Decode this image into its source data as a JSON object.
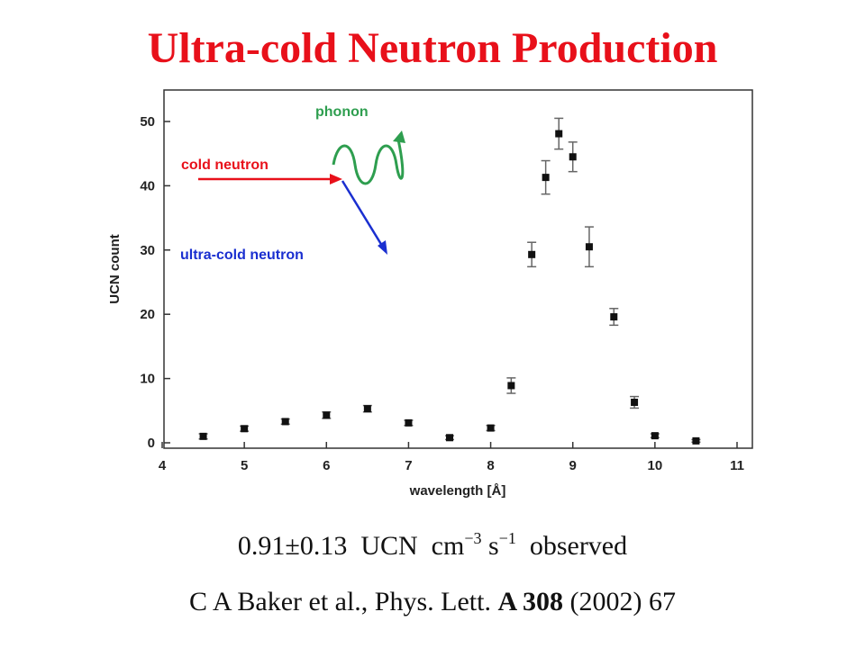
{
  "title": "Ultra-cold Neutron Production",
  "annotations": {
    "phonon": "phonon",
    "cold_neutron": "cold neutron",
    "ultra_cold_neutron": "ultra-cold neutron",
    "colors": {
      "phonon": "#2e9e4f",
      "cold_neutron": "#e8101a",
      "ultra_cold_neutron": "#1a2fd0"
    }
  },
  "rate": {
    "value": "0.91±0.13",
    "unit_ucn": "UCN",
    "unit_cm": "cm",
    "cm_exp": "−3",
    "unit_s": "s",
    "s_exp": "−1",
    "suffix": "observed"
  },
  "citation": {
    "authors": "C A Baker et al., Phys. Lett.",
    "volume": "A 308",
    "rest": "(2002) 67"
  },
  "chart_data": {
    "type": "scatter",
    "xlabel": "wavelength [Å]",
    "ylabel": "UCN count",
    "xlim": [
      4,
      11
    ],
    "ylim": [
      0,
      55
    ],
    "x_ticks": [
      4,
      5,
      6,
      7,
      8,
      9,
      10,
      11
    ],
    "y_ticks": [
      0,
      10,
      20,
      30,
      40,
      50
    ],
    "grid": false,
    "points": [
      {
        "x": 4.5,
        "y": 1.0,
        "err": 0.4
      },
      {
        "x": 5.0,
        "y": 2.2,
        "err": 0.4
      },
      {
        "x": 5.5,
        "y": 3.3,
        "err": 0.4
      },
      {
        "x": 6.0,
        "y": 4.3,
        "err": 0.5
      },
      {
        "x": 6.5,
        "y": 5.3,
        "err": 0.5
      },
      {
        "x": 7.0,
        "y": 3.1,
        "err": 0.4
      },
      {
        "x": 7.5,
        "y": 0.8,
        "err": 0.3
      },
      {
        "x": 8.0,
        "y": 2.3,
        "err": 0.4
      },
      {
        "x": 8.25,
        "y": 8.9,
        "err": 1.2
      },
      {
        "x": 8.5,
        "y": 29.3,
        "err": 1.9
      },
      {
        "x": 8.67,
        "y": 41.3,
        "err": 2.6
      },
      {
        "x": 8.83,
        "y": 48.1,
        "err": 2.4
      },
      {
        "x": 9.0,
        "y": 44.5,
        "err": 2.3
      },
      {
        "x": 9.2,
        "y": 30.5,
        "err": 3.1
      },
      {
        "x": 9.5,
        "y": 19.6,
        "err": 1.3
      },
      {
        "x": 9.75,
        "y": 6.3,
        "err": 0.9
      },
      {
        "x": 10.0,
        "y": 1.1,
        "err": 0.3
      },
      {
        "x": 10.5,
        "y": 0.3,
        "err": 0.2
      }
    ]
  }
}
